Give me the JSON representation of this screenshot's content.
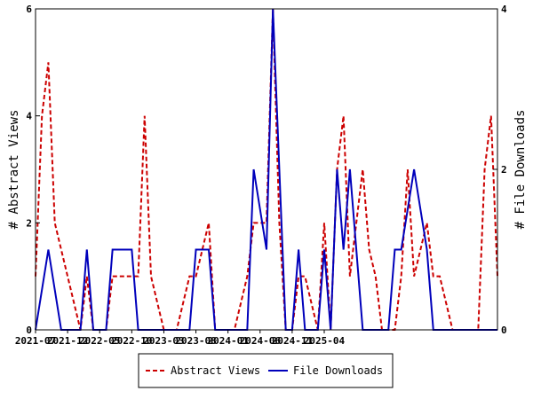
{
  "chart_data": {
    "type": "line",
    "x_tick_labels": [
      "2021-07",
      "2021-12",
      "2022-05",
      "2022-10",
      "2023-03",
      "2023-08",
      "2024-01",
      "2024-06",
      "2024-11",
      "2025-04"
    ],
    "left_axis": {
      "label": "# Abstract Views",
      "ylim": [
        0,
        6
      ],
      "ticks": [
        "0",
        "2",
        "4",
        "6"
      ]
    },
    "right_axis": {
      "label": "# File Downloads",
      "ylim": [
        0,
        4
      ],
      "ticks": [
        "0",
        "2",
        "4"
      ]
    },
    "legend_position": "bottom-center",
    "series": [
      {
        "name": "Abstract Views",
        "axis": "left",
        "color": "#cc0000",
        "style": "dashed",
        "values": [
          1,
          4,
          5,
          2,
          1.5,
          1,
          0.5,
          0,
          1,
          0,
          0,
          0,
          1,
          1,
          1,
          1,
          1,
          4,
          1,
          0.5,
          0,
          0,
          0,
          0.5,
          1,
          1,
          1.5,
          2,
          0,
          0,
          0,
          0,
          0.5,
          1,
          2,
          2,
          2,
          6,
          2,
          0,
          0,
          1,
          1,
          0.5,
          0,
          2,
          0,
          3,
          4,
          1,
          2,
          3,
          1.5,
          1,
          0,
          0,
          0,
          1,
          3,
          1,
          1.5,
          2,
          1,
          1,
          0.5,
          0,
          0,
          0,
          0,
          0,
          3,
          4,
          1
        ]
      },
      {
        "name": "File Downloads",
        "axis": "right",
        "color": "#0000bb",
        "style": "solid",
        "values": [
          0,
          0.5,
          1,
          0.5,
          0,
          0,
          0,
          0,
          1,
          0,
          0,
          0,
          1,
          1,
          1,
          1,
          0,
          0,
          0,
          0,
          0,
          0,
          0,
          0,
          0,
          1,
          1,
          1,
          0,
          0,
          0,
          0,
          0,
          0,
          2,
          1.5,
          1,
          4,
          2,
          0,
          0,
          1,
          0,
          0,
          0,
          1,
          0,
          2,
          1,
          2,
          1,
          0,
          0,
          0,
          0,
          0,
          1,
          1,
          1.5,
          2,
          1.5,
          1,
          0,
          0,
          0,
          0,
          0,
          0,
          0,
          0,
          0,
          0,
          0
        ]
      }
    ]
  }
}
